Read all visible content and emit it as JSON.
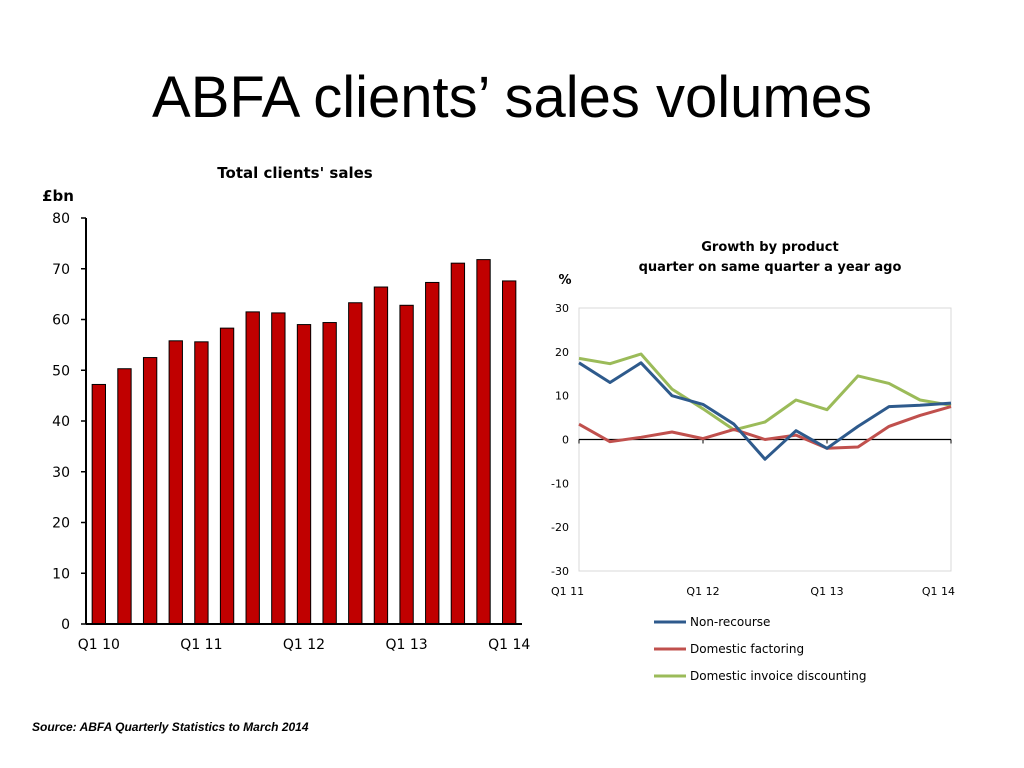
{
  "slide": {
    "title": "ABFA clients’ sales volumes",
    "source": "Source: ABFA Quarterly Statistics to March 2014"
  },
  "chart_data": [
    {
      "type": "bar",
      "title": "Total clients' sales",
      "ylabel": "£bn",
      "ylim": [
        0,
        80
      ],
      "yticks": [
        0,
        10,
        20,
        30,
        40,
        50,
        60,
        70,
        80
      ],
      "categories": [
        "Q1 10",
        "Q2 10",
        "Q3 10",
        "Q4 10",
        "Q1 11",
        "Q2 11",
        "Q3 11",
        "Q4 11",
        "Q1 12",
        "Q2 12",
        "Q3 12",
        "Q4 12",
        "Q1 13",
        "Q2 13",
        "Q3 13",
        "Q4 13",
        "Q1 14"
      ],
      "tick_labels": [
        "Q1 10",
        "Q1 11",
        "Q1 12",
        "Q1 13",
        "Q1 14"
      ],
      "values": [
        47.2,
        50.3,
        52.5,
        55.8,
        55.6,
        58.3,
        61.5,
        61.3,
        59.0,
        59.4,
        63.3,
        66.4,
        62.8,
        67.3,
        71.1,
        71.8,
        67.6
      ],
      "bar_color": "#c00000",
      "grid": false
    },
    {
      "type": "line",
      "title": "Growth by product",
      "subtitle": "quarter on same quarter a year ago",
      "ylabel": "%",
      "ylim": [
        -30,
        30
      ],
      "yticks": [
        -30,
        -20,
        -10,
        0,
        10,
        20,
        30
      ],
      "x": [
        "Q1 11",
        "Q2 11",
        "Q3 11",
        "Q4 11",
        "Q1 12",
        "Q2 12",
        "Q3 12",
        "Q4 12",
        "Q1 13",
        "Q2 13",
        "Q3 13",
        "Q4 13",
        "Q1 14"
      ],
      "tick_labels": [
        "Q1 11",
        "Q1 12",
        "Q1 13",
        "Q1 14"
      ],
      "series": [
        {
          "name": "Non-recourse",
          "color": "#2e5a8c",
          "values": [
            17.5,
            13.0,
            17.5,
            10.0,
            8.0,
            3.5,
            -4.5,
            2.0,
            -2.0,
            3.0,
            7.5,
            7.8,
            8.3
          ]
        },
        {
          "name": "Domestic factoring",
          "color": "#c0504d",
          "values": [
            3.5,
            -0.5,
            0.5,
            1.7,
            0.2,
            2.3,
            0.0,
            1.0,
            -2.0,
            -1.7,
            3.0,
            5.5,
            7.5
          ]
        },
        {
          "name": "Domestic invoice discounting",
          "color": "#9bbb59",
          "values": [
            18.5,
            17.3,
            19.5,
            11.5,
            7.0,
            2.2,
            4.0,
            9.0,
            6.8,
            14.5,
            12.8,
            9.0,
            7.8
          ]
        }
      ],
      "legend_position": "bottom",
      "grid": false
    }
  ]
}
